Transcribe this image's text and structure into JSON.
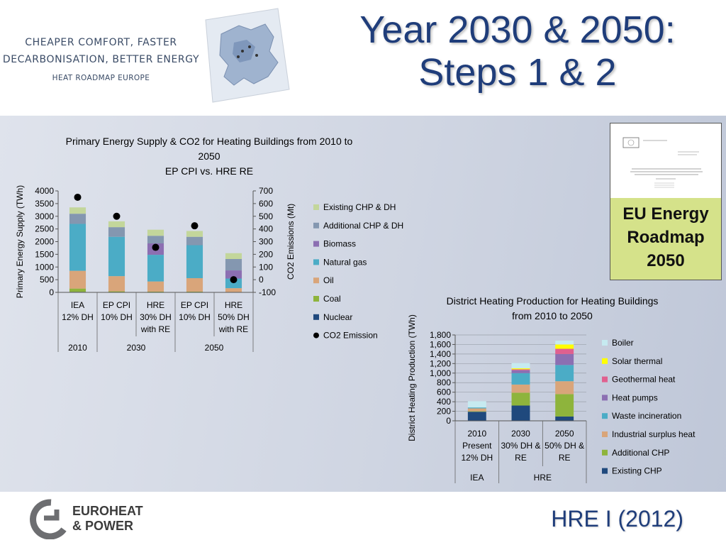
{
  "header": {
    "tagline_1": "CHEAPER COMFORT, FASTER",
    "tagline_2": "DECARBONISATION, BETTER ENERGY",
    "tagline_3": "HEAT ROADMAP EUROPE",
    "title_line_1": "Year 2030 & 2050:",
    "title_line_2": "Steps 1 & 2"
  },
  "eu_box": {
    "line_1": "EU Energy",
    "line_2": "Roadmap",
    "line_3": "2050"
  },
  "footer": {
    "hre_label": "HRE I (2012)",
    "logo_line_1": "EUROHEAT",
    "logo_line_2": "& POWER"
  },
  "colors": {
    "existing_chp_dh": "#c3d69b",
    "additional_chp_dh": "#8497b0",
    "biomass": "#8c6fb2",
    "natural_gas": "#4bacc6",
    "oil": "#d9a57a",
    "coal": "#8eb43c",
    "nuclear": "#1f497d",
    "boiler": "#c6eaf0",
    "solar_thermal": "#ffff00",
    "geothermal": "#e0608f",
    "heat_pumps": "#8c6fb2",
    "waste_incineration": "#4bacc6",
    "industrial_surplus": "#d9a57a",
    "additional_chp": "#8eb43c",
    "existing_chp": "#1f497d"
  },
  "chart_data": [
    {
      "type": "bar",
      "stacked": true,
      "title_lines": [
        "Primary Energy Supply & CO2 for Heating Buildings from 2010 to",
        "2050",
        "EP CPI vs. HRE RE"
      ],
      "ylabel": "Primary Energy Supply (TWh)",
      "y2label": "CO2 Emissions (Mt)",
      "ylim": [
        0,
        4000
      ],
      "y2lim": [
        -100,
        700
      ],
      "yticks": [
        "4000",
        "3500",
        "3000",
        "2500",
        "2000",
        "1500",
        "1000",
        "500",
        "0"
      ],
      "y2ticks": [
        "700",
        "600",
        "500",
        "400",
        "300",
        "200",
        "100",
        "0",
        "-100"
      ],
      "categories": [
        {
          "lines": [
            "IEA",
            "12% DH"
          ]
        },
        {
          "lines": [
            "EP CPI",
            "10% DH"
          ]
        },
        {
          "lines": [
            "HRE",
            "30% DH",
            "with RE"
          ]
        },
        {
          "lines": [
            "EP CPI",
            "10% DH"
          ]
        },
        {
          "lines": [
            "HRE",
            "50% DH",
            "with RE"
          ]
        }
      ],
      "groups": [
        {
          "label": "2010",
          "span": [
            0,
            0
          ]
        },
        {
          "label": "2030",
          "span": [
            1,
            2
          ]
        },
        {
          "label": "2050",
          "span": [
            3,
            4
          ]
        }
      ],
      "series": [
        {
          "name": "Nuclear",
          "color_key": "nuclear",
          "values": [
            20,
            10,
            10,
            10,
            5
          ]
        },
        {
          "name": "Coal",
          "color_key": "coal",
          "values": [
            130,
            30,
            20,
            20,
            10
          ]
        },
        {
          "name": "Oil",
          "color_key": "oil",
          "values": [
            700,
            600,
            400,
            530,
            150
          ]
        },
        {
          "name": "Natural gas",
          "color_key": "natural_gas",
          "values": [
            1850,
            1550,
            1050,
            1300,
            380
          ]
        },
        {
          "name": "Biomass",
          "color_key": "biomass",
          "values": [
            0,
            0,
            450,
            0,
            320
          ]
        },
        {
          "name": "Additional CHP & DH",
          "color_key": "additional_chp_dh",
          "values": [
            400,
            380,
            300,
            330,
            450
          ]
        },
        {
          "name": "Existing CHP & DH",
          "color_key": "existing_chp_dh",
          "values": [
            250,
            230,
            240,
            230,
            230
          ]
        }
      ],
      "co2": {
        "name": "CO2 Emission",
        "values": [
          650,
          500,
          255,
          425,
          0
        ]
      },
      "legend_order": [
        "Existing CHP & DH",
        "Additional CHP & DH",
        "Biomass",
        "Natural gas",
        "Oil",
        "Coal",
        "Nuclear",
        "CO2 Emission"
      ],
      "legend_position": "right"
    },
    {
      "type": "bar",
      "stacked": true,
      "title_lines": [
        "District Heating Production for Heating Buildings",
        "from 2010 to 2050"
      ],
      "ylabel": "District Heating Production (TWh)",
      "ylim": [
        0,
        1800
      ],
      "yticks": [
        "1,800",
        "1,600",
        "1,400",
        "1,200",
        "1,000",
        "800",
        "600",
        "400",
        "200",
        "0"
      ],
      "categories": [
        {
          "lines": [
            "2010",
            "Present",
            "12% DH"
          ]
        },
        {
          "lines": [
            "2030",
            "30% DH &",
            "RE"
          ]
        },
        {
          "lines": [
            "2050",
            "50% DH &",
            "RE"
          ]
        }
      ],
      "groups": [
        {
          "label": "IEA",
          "span": [
            0,
            0
          ]
        },
        {
          "label": "HRE",
          "span": [
            1,
            2
          ]
        }
      ],
      "series": [
        {
          "name": "Existing CHP",
          "color_key": "existing_chp",
          "values": [
            190,
            320,
            90
          ]
        },
        {
          "name": "Additional CHP",
          "color_key": "additional_chp",
          "values": [
            10,
            270,
            470
          ]
        },
        {
          "name": "Industrial surplus heat",
          "color_key": "industrial_surplus",
          "values": [
            60,
            170,
            270
          ]
        },
        {
          "name": "Waste incineration",
          "color_key": "waste_incineration",
          "values": [
            20,
            240,
            340
          ]
        },
        {
          "name": "Heat pumps",
          "color_key": "heat_pumps",
          "values": [
            0,
            60,
            230
          ]
        },
        {
          "name": "Geothermal heat",
          "color_key": "geothermal",
          "values": [
            0,
            20,
            110
          ]
        },
        {
          "name": "Solar thermal",
          "color_key": "solar_thermal",
          "values": [
            0,
            20,
            90
          ]
        },
        {
          "name": "Boiler",
          "color_key": "boiler",
          "values": [
            130,
            110,
            80
          ]
        }
      ],
      "legend_order": [
        "Boiler",
        "Solar thermal",
        "Geothermal heat",
        "Heat pumps",
        "Waste incineration",
        "Industrial surplus heat",
        "Additional CHP",
        "Existing CHP"
      ],
      "legend_position": "right"
    }
  ]
}
